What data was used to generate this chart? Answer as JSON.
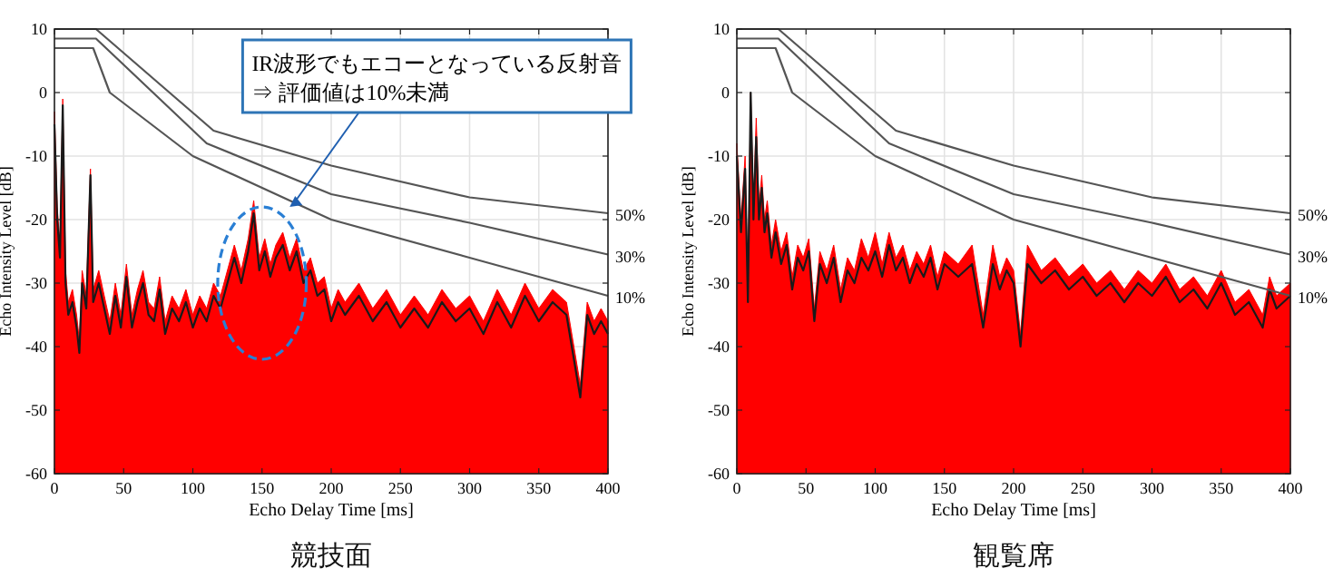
{
  "chart_data": [
    {
      "type": "line",
      "title": "競技面",
      "xlabel": "Echo Delay Time [ms]",
      "ylabel": "Echo Intensity Level [dB]",
      "xlim": [
        0,
        400
      ],
      "ylim": [
        -60,
        10
      ],
      "xticks": [
        0,
        50,
        100,
        150,
        200,
        250,
        300,
        350,
        400
      ],
      "yticks": [
        -60,
        -50,
        -40,
        -30,
        -20,
        -10,
        0,
        10
      ],
      "grid": true,
      "series": [
        {
          "type": "area",
          "color": "#ff0000",
          "x": [
            0,
            0,
            2,
            4,
            6,
            8,
            10,
            13,
            16,
            18,
            20,
            23,
            26,
            28,
            32,
            36,
            40,
            44,
            48,
            52,
            56,
            60,
            64,
            68,
            72,
            76,
            80,
            85,
            90,
            95,
            100,
            105,
            110,
            115,
            120,
            125,
            130,
            135,
            140,
            144,
            148,
            152,
            156,
            160,
            165,
            170,
            175,
            180,
            185,
            190,
            195,
            200,
            205,
            210,
            220,
            230,
            240,
            250,
            260,
            270,
            280,
            290,
            300,
            310,
            320,
            330,
            340,
            350,
            360,
            370,
            380,
            385,
            390,
            395,
            400,
            400
          ],
          "values": [
            -60,
            -3,
            -18,
            -24,
            -1,
            -28,
            -33,
            -31,
            -35,
            -39,
            -28,
            -32,
            -12,
            -31,
            -28,
            -32,
            -36,
            -30,
            -35,
            -27,
            -35,
            -31,
            -28,
            -33,
            -34,
            -29,
            -36,
            -32,
            -34,
            -31,
            -35,
            -32,
            -34,
            -30,
            -32,
            -28,
            -24,
            -28,
            -23,
            -17,
            -26,
            -23,
            -27,
            -24,
            -22,
            -26,
            -23,
            -28,
            -26,
            -30,
            -29,
            -34,
            -31,
            -33,
            -30,
            -34,
            -31,
            -35,
            -32,
            -35,
            -31,
            -34,
            -32,
            -36,
            -31,
            -35,
            -30,
            -34,
            -31,
            -33,
            -46,
            -33,
            -36,
            -34,
            -36,
            -60
          ]
        },
        {
          "type": "line",
          "color": "#1a1a1a",
          "x": [
            0,
            2,
            4,
            6,
            8,
            10,
            13,
            16,
            18,
            20,
            23,
            26,
            28,
            32,
            36,
            40,
            44,
            48,
            52,
            56,
            60,
            64,
            68,
            72,
            76,
            80,
            85,
            90,
            95,
            100,
            105,
            110,
            115,
            120,
            125,
            130,
            135,
            140,
            144,
            148,
            152,
            156,
            160,
            165,
            170,
            175,
            180,
            185,
            190,
            195,
            200,
            205,
            210,
            220,
            230,
            240,
            250,
            260,
            270,
            280,
            290,
            300,
            310,
            320,
            330,
            340,
            350,
            360,
            370,
            380,
            385,
            390,
            395,
            400
          ],
          "values": [
            -5,
            -20,
            -26,
            -2,
            -30,
            -35,
            -33,
            -37,
            -41,
            -30,
            -34,
            -13,
            -33,
            -30,
            -34,
            -38,
            -32,
            -37,
            -29,
            -37,
            -33,
            -30,
            -35,
            -36,
            -31,
            -38,
            -34,
            -36,
            -33,
            -37,
            -34,
            -36,
            -32,
            -34,
            -30,
            -26,
            -30,
            -25,
            -19,
            -28,
            -25,
            -29,
            -26,
            -24,
            -28,
            -25,
            -30,
            -28,
            -32,
            -31,
            -36,
            -33,
            -35,
            -32,
            -36,
            -33,
            -37,
            -34,
            -37,
            -33,
            -36,
            -34,
            -38,
            -33,
            -37,
            -32,
            -36,
            -33,
            -35,
            -48,
            -35,
            -38,
            -36,
            -38
          ]
        },
        {
          "type": "line",
          "name": "50%",
          "color": "#555555",
          "x": [
            0,
            30,
            115,
            200,
            300,
            400
          ],
          "values": [
            10,
            10,
            -6,
            -11.5,
            -16.5,
            -19
          ]
        },
        {
          "type": "line",
          "name": "30%",
          "color": "#555555",
          "x": [
            0,
            30,
            110,
            200,
            300,
            400
          ],
          "values": [
            8.5,
            8.5,
            -8,
            -16,
            -20.5,
            -25.5
          ]
        },
        {
          "type": "line",
          "name": "10%",
          "color": "#555555",
          "x": [
            0,
            28,
            40,
            100,
            200,
            300,
            400
          ],
          "values": [
            7,
            7,
            0,
            -10,
            -20,
            -26,
            -32
          ]
        }
      ],
      "annotations": [
        {
          "text": "IR波形でもエコーとなっている反射音\n⇒ 評価値は10%未満",
          "x": 170,
          "y": -18
        }
      ]
    },
    {
      "type": "line",
      "title": "観覧席",
      "xlabel": "Echo Delay Time [ms]",
      "ylabel": "Echo Intensity Level [dB]",
      "xlim": [
        0,
        400
      ],
      "ylim": [
        -60,
        10
      ],
      "xticks": [
        0,
        50,
        100,
        150,
        200,
        250,
        300,
        350,
        400
      ],
      "yticks": [
        -60,
        -50,
        -40,
        -30,
        -20,
        -10,
        0,
        10
      ],
      "grid": true,
      "series": [
        {
          "type": "area",
          "color": "#ff0000",
          "x": [
            0,
            0,
            3,
            6,
            8,
            10,
            12,
            14,
            16,
            18,
            20,
            22,
            25,
            28,
            32,
            36,
            40,
            44,
            48,
            52,
            56,
            60,
            65,
            70,
            75,
            80,
            85,
            90,
            95,
            100,
            105,
            110,
            115,
            120,
            125,
            130,
            135,
            140,
            145,
            150,
            160,
            170,
            178,
            185,
            190,
            195,
            200,
            205,
            210,
            220,
            230,
            240,
            250,
            260,
            270,
            280,
            290,
            300,
            310,
            320,
            330,
            340,
            350,
            360,
            370,
            380,
            385,
            390,
            400,
            400
          ],
          "values": [
            -60,
            -8,
            -20,
            -10,
            -31,
            0,
            -18,
            -4,
            -18,
            -13,
            -20,
            -17,
            -24,
            -20,
            -25,
            -22,
            -29,
            -24,
            -26,
            -23,
            -34,
            -25,
            -28,
            -24,
            -31,
            -26,
            -28,
            -23,
            -26,
            -22,
            -27,
            -22,
            -26,
            -24,
            -28,
            -25,
            -27,
            -24,
            -29,
            -25,
            -27,
            -24,
            -35,
            -24,
            -29,
            -26,
            -28,
            -38,
            -24,
            -28,
            -26,
            -29,
            -27,
            -30,
            -28,
            -31,
            -28,
            -30,
            -27,
            -31,
            -29,
            -32,
            -28,
            -33,
            -31,
            -35,
            -29,
            -32,
            -30,
            -60
          ]
        },
        {
          "type": "line",
          "color": "#1a1a1a",
          "x": [
            0,
            3,
            6,
            8,
            10,
            12,
            14,
            16,
            18,
            20,
            22,
            25,
            28,
            32,
            36,
            40,
            44,
            48,
            52,
            56,
            60,
            65,
            70,
            75,
            80,
            85,
            90,
            95,
            100,
            105,
            110,
            115,
            120,
            125,
            130,
            135,
            140,
            145,
            150,
            160,
            170,
            178,
            185,
            190,
            195,
            200,
            205,
            210,
            220,
            230,
            240,
            250,
            260,
            270,
            280,
            290,
            300,
            310,
            320,
            330,
            340,
            350,
            360,
            370,
            380,
            385,
            390,
            400
          ],
          "values": [
            -10,
            -22,
            -12,
            -33,
            0,
            -20,
            -7,
            -20,
            -15,
            -22,
            -19,
            -26,
            -22,
            -27,
            -24,
            -31,
            -26,
            -28,
            -25,
            -36,
            -27,
            -30,
            -26,
            -33,
            -28,
            -30,
            -26,
            -28,
            -25,
            -29,
            -24,
            -28,
            -26,
            -30,
            -27,
            -29,
            -26,
            -31,
            -27,
            -29,
            -27,
            -37,
            -27,
            -31,
            -28,
            -30,
            -40,
            -27,
            -30,
            -28,
            -31,
            -29,
            -32,
            -30,
            -33,
            -30,
            -32,
            -29,
            -33,
            -31,
            -34,
            -30,
            -35,
            -33,
            -37,
            -31,
            -34,
            -32
          ]
        },
        {
          "type": "line",
          "name": "50%",
          "color": "#555555",
          "x": [
            0,
            30,
            115,
            200,
            300,
            400
          ],
          "values": [
            10,
            10,
            -6,
            -11.5,
            -16.5,
            -19
          ]
        },
        {
          "type": "line",
          "name": "30%",
          "color": "#555555",
          "x": [
            0,
            30,
            110,
            200,
            300,
            400
          ],
          "values": [
            8.5,
            8.5,
            -8,
            -16,
            -20.5,
            -25.5
          ]
        },
        {
          "type": "line",
          "name": "10%",
          "color": "#555555",
          "x": [
            0,
            28,
            40,
            100,
            200,
            300,
            400
          ],
          "values": [
            7,
            7,
            0,
            -10,
            -20,
            -26,
            -32
          ]
        }
      ]
    }
  ]
}
